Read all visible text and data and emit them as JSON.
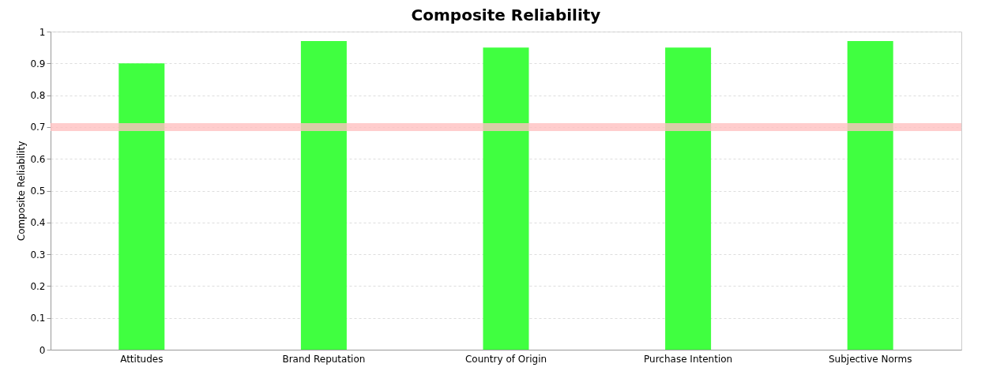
{
  "chart_data": {
    "type": "bar",
    "title": "Composite Reliability",
    "ylabel": "Composite Reliability",
    "categories": [
      "Attitudes",
      "Brand Reputation",
      "Country of Origin",
      "Purchase Intention",
      "Subjective Norms"
    ],
    "values": [
      0.9,
      0.97,
      0.95,
      0.95,
      0.97
    ],
    "color": "#40ff40",
    "ylim": [
      0,
      1
    ],
    "yticks": [
      0,
      0.1,
      0.2,
      0.3,
      0.4,
      0.5,
      0.6,
      0.7,
      0.8,
      0.9,
      1
    ],
    "grid": "y",
    "ref_lines": [
      {
        "axis": "y",
        "value": 0.7,
        "color": "#ffc0c0"
      }
    ]
  }
}
